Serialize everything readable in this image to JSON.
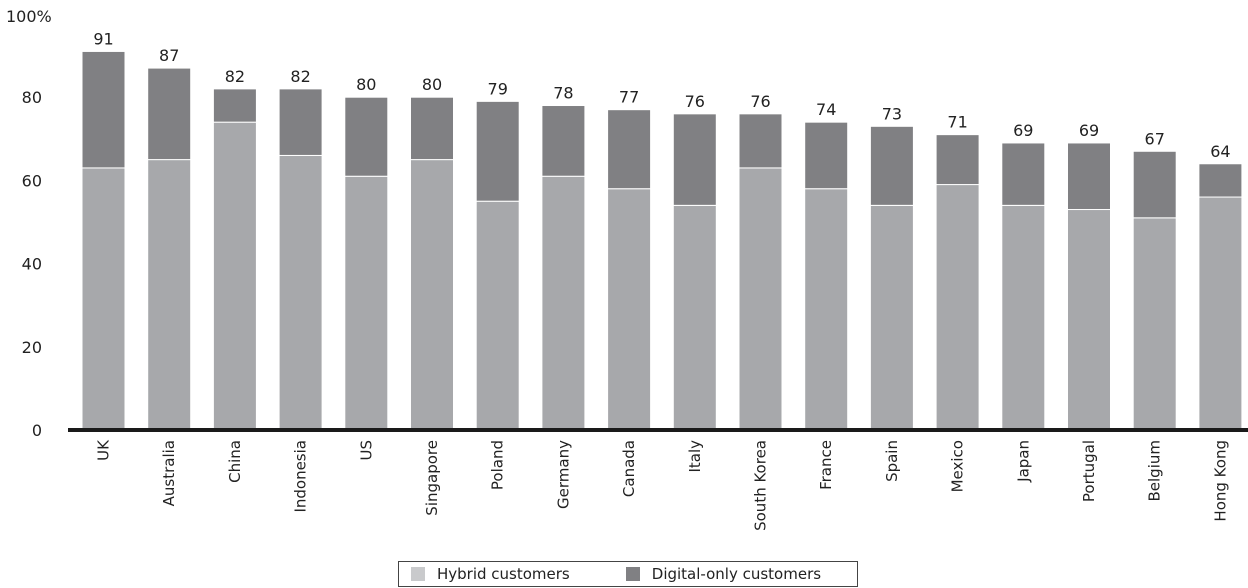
{
  "chart_data": {
    "type": "bar",
    "stacked": true,
    "y_top_label": "100%",
    "ylim": [
      0,
      100
    ],
    "yticks": [
      0,
      20,
      40,
      60,
      80
    ],
    "categories": [
      "UK",
      "Australia",
      "China",
      "Indonesia",
      "US",
      "Singapore",
      "Poland",
      "Germany",
      "Canada",
      "Italy",
      "South Korea",
      "France",
      "Spain",
      "Mexico",
      "Japan",
      "Portugal",
      "Belgium",
      "Hong Kong"
    ],
    "totals": [
      91,
      87,
      82,
      82,
      80,
      80,
      79,
      78,
      77,
      76,
      76,
      74,
      73,
      71,
      69,
      69,
      67,
      64
    ],
    "series": [
      {
        "name": "Hybrid customers",
        "color": "#a7a8ab",
        "values": [
          63,
          65,
          74,
          66,
          61,
          65,
          55,
          61,
          58,
          54,
          63,
          58,
          54,
          59,
          54,
          53,
          51,
          56
        ]
      },
      {
        "name": "Digital-only customers",
        "color": "#808083",
        "values": [
          28,
          22,
          8,
          16,
          19,
          15,
          24,
          17,
          19,
          22,
          13,
          16,
          19,
          12,
          15,
          16,
          16,
          8
        ]
      }
    ],
    "grid": false,
    "legend_position": "bottom"
  },
  "legend": {
    "items": [
      {
        "label": "Hybrid customers",
        "color": "#c9cacc"
      },
      {
        "label": "Digital-only customers",
        "color": "#808083"
      }
    ]
  }
}
